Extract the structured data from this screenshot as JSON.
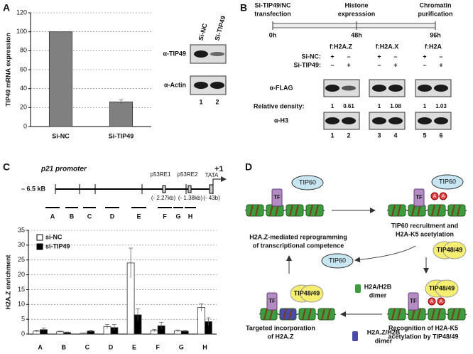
{
  "chart_data": [
    {
      "type": "bar",
      "label": "A",
      "ylabel": "TIP49 mRNA expression",
      "categories": [
        "Si-NC",
        "Si-TIP49"
      ],
      "values": [
        100,
        26
      ],
      "errors": [
        0,
        2
      ],
      "color": "#808080",
      "ylim": [
        0,
        120
      ],
      "yticks": [
        0,
        20,
        40,
        60,
        80,
        100,
        120
      ],
      "grid": true
    },
    {
      "type": "bar",
      "ylabel": "H2A.Z enrichment",
      "categories": [
        "A",
        "B",
        "C",
        "D",
        "E",
        "F",
        "G",
        "H"
      ],
      "series": [
        {
          "name": "si-NC",
          "color": "#ffffff",
          "values": [
            1,
            0.8,
            0.3,
            2.5,
            24,
            1.2,
            1.1,
            9
          ],
          "errors": [
            0.3,
            0.2,
            0.1,
            0.7,
            5,
            0.4,
            0.3,
            1.2
          ]
        },
        {
          "name": "si-TIP49",
          "color": "#000000",
          "values": [
            1.5,
            0.5,
            1,
            2.2,
            6.5,
            2.8,
            1,
            4.2
          ],
          "errors": [
            0.6,
            0.2,
            0.3,
            1,
            2,
            1.2,
            0.3,
            1.3
          ]
        }
      ],
      "ylim": [
        0,
        35
      ],
      "yticks": [
        0,
        5,
        10,
        15,
        20,
        25,
        30,
        35
      ],
      "grid": true,
      "legend": "top-left"
    }
  ],
  "panel_a": {
    "blot": {
      "columns": [
        "Si-NC",
        "Si-TIP49"
      ],
      "rows": [
        "α-TIP49",
        "α-Actin"
      ],
      "lanes": [
        "1",
        "2"
      ]
    }
  },
  "panel_b": {
    "label": "B",
    "steps": [
      {
        "label": [
          "Si-TIP49/NC",
          "transfection"
        ],
        "time": "0h"
      },
      {
        "label": [
          "Histone",
          "expresssion"
        ],
        "time": "48h"
      },
      {
        "label": [
          "Chromatin",
          "purification"
        ],
        "time": "96h"
      }
    ],
    "groups": [
      "f:H2A.Z",
      "f:H2A.X",
      "f:H2A"
    ],
    "conditions": [
      {
        "label": "Si-NC:",
        "signs": [
          "+",
          "–",
          "+",
          "–",
          "+",
          "–"
        ]
      },
      {
        "label": "Si-TIP49:",
        "signs": [
          "–",
          "+",
          "–",
          "+",
          "–",
          "+"
        ]
      }
    ],
    "rows": [
      "α-FLAG",
      "α-H3"
    ],
    "density_label": "Relative density:",
    "density": [
      1,
      0.61,
      1,
      1.08,
      1,
      1.03
    ],
    "lanes": [
      "1",
      "2",
      "3",
      "4",
      "5",
      "6"
    ]
  },
  "panel_c": {
    "label": "C",
    "title": "p21 promoter",
    "start": "– 6.5 kB",
    "tss": "+1",
    "tata": "TATA",
    "elements": [
      {
        "name": "p53RE1",
        "position": "(- 2.27kb)"
      },
      {
        "name": "p53RE2",
        "position": "(- 1.38kb)"
      }
    ],
    "tata_position": "(- 43b)"
  },
  "panel_d": {
    "label": "D",
    "tip60": "TIP60",
    "tf": "TF",
    "tip48_49": "TIP48/49",
    "acetyl": "A",
    "step1": [
      "TIP60 recruitment and",
      "H2A-K5 acetylation"
    ],
    "step2": [
      "Recognition of H2A-K5",
      "acetylation by TIP48/49"
    ],
    "step3": [
      "Targeted incorporation",
      "of H2A.Z"
    ],
    "step4": [
      "H2A.Z-mediated reprogramming",
      "of transcriptional competence"
    ],
    "h2a_dimer": [
      "H2A/H2B",
      "dimer"
    ],
    "h2az_dimer": [
      "H2A.Z/H2B",
      "dimer"
    ]
  }
}
